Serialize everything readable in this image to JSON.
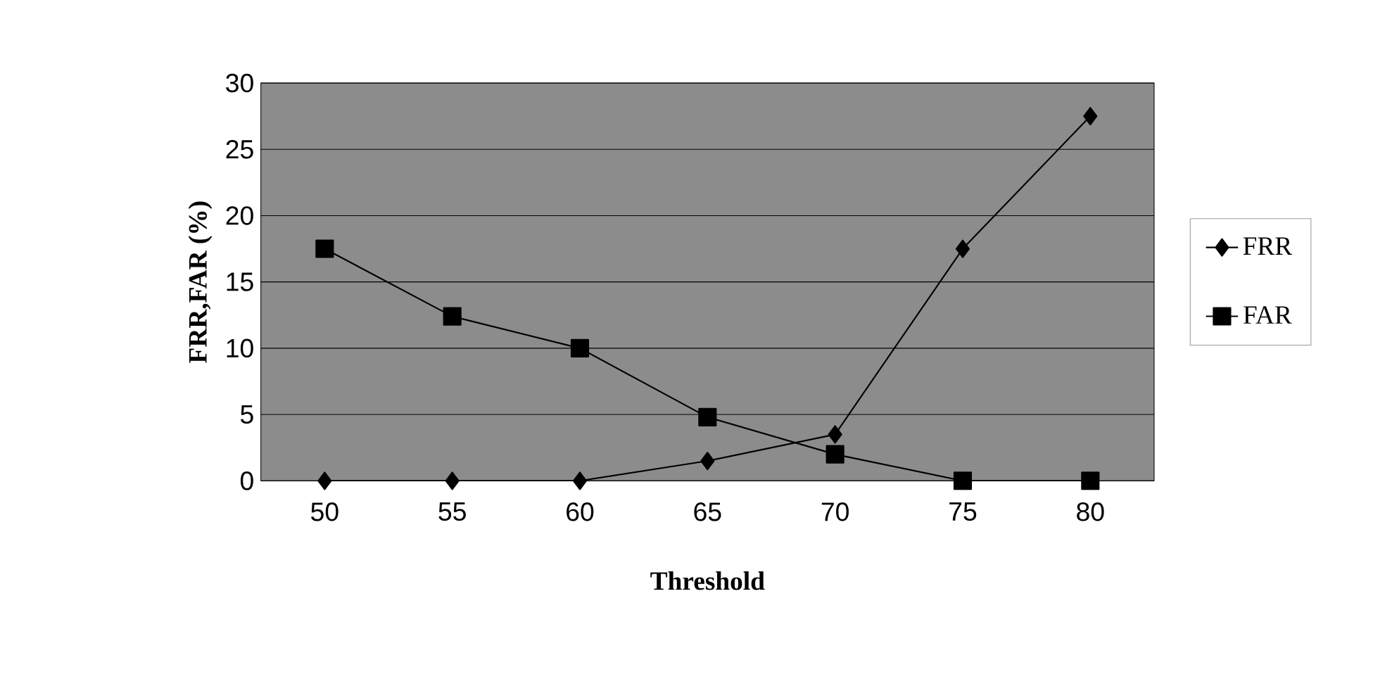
{
  "chart_data": {
    "type": "line",
    "xlabel": "Threshold",
    "ylabel": "FRR,FAR (%)",
    "categories": [
      "50",
      "55",
      "60",
      "65",
      "70",
      "75",
      "80"
    ],
    "series": [
      {
        "name": "FRR",
        "color": "#000000",
        "marker": "diamond",
        "values": [
          0,
          0,
          0,
          1.5,
          3.5,
          17.5,
          27.5
        ]
      },
      {
        "name": "FAR",
        "color": "#000000",
        "marker": "square",
        "values": [
          17.5,
          12.4,
          10,
          4.8,
          2,
          0,
          0
        ]
      }
    ],
    "ylim": [
      0,
      30
    ],
    "yticks": [
      0,
      5,
      10,
      15,
      20,
      25,
      30
    ],
    "grid": "y",
    "legend": "right",
    "line_style": "solid"
  }
}
